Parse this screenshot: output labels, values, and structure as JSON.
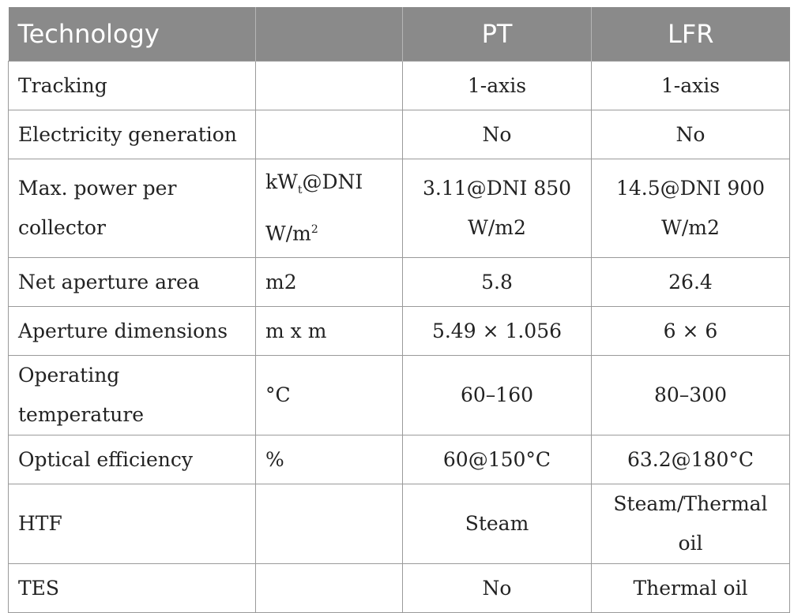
{
  "table": {
    "headers": [
      "Technology",
      "",
      "PT",
      "LFR"
    ],
    "rows": [
      {
        "label": "Tracking",
        "unit": "",
        "pt": "1-axis",
        "lfr": "1-axis"
      },
      {
        "label": "Electricity generation",
        "unit": "",
        "pt": "No",
        "lfr": "No"
      },
      {
        "label": "Max. power per collector",
        "unit_parts": {
          "kw": "kW",
          "sub": "t",
          "dni": "@DNI",
          "wm": "W/m",
          "sup": "2"
        },
        "pt": "3.11@DNI 850 W/m2",
        "lfr": "14.5@DNI 900 W/m2"
      },
      {
        "label": "Net aperture area",
        "unit": "m2",
        "pt": "5.8",
        "lfr": "26.4"
      },
      {
        "label": "Aperture dimensions",
        "unit": "m x m",
        "pt": "5.49 × 1.056",
        "lfr": "6 × 6"
      },
      {
        "label": "Operating temperature",
        "unit": "°C",
        "pt": "60–160",
        "lfr": "80–300"
      },
      {
        "label": "Optical efficiency",
        "unit": "%",
        "pt": "60@150°C",
        "lfr": "63.2@180°C"
      },
      {
        "label": "HTF",
        "unit": "",
        "pt": "Steam",
        "lfr": "Steam/Thermal oil"
      },
      {
        "label": "TES",
        "unit": "",
        "pt": "No",
        "lfr": "Thermal oil"
      }
    ]
  }
}
